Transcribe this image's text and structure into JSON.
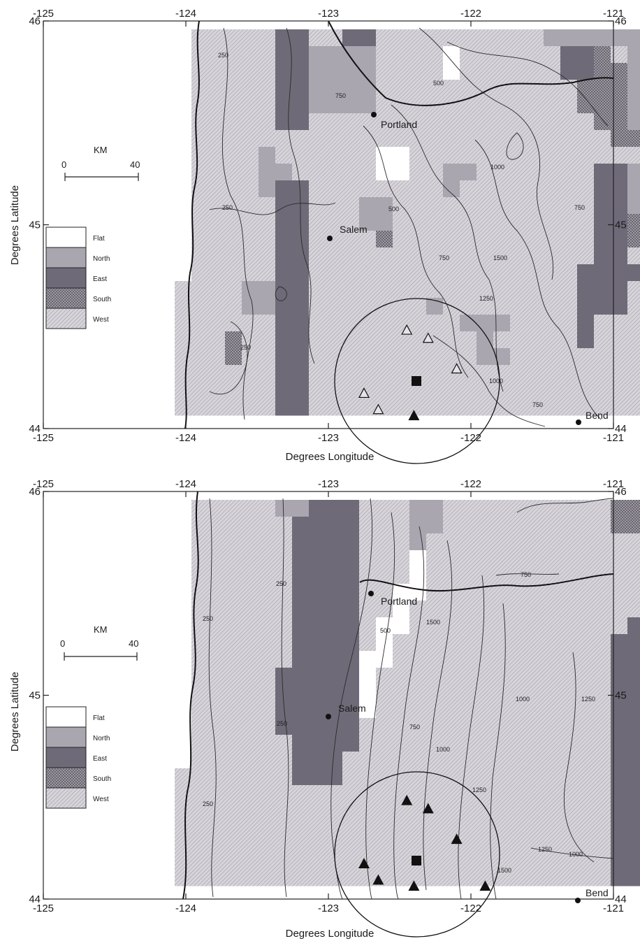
{
  "map_data": {
    "axes": {
      "xlabel": "Degrees Longitude",
      "ylabel": "Degrees Latitude",
      "xlim": [
        -125,
        -121
      ],
      "ylim": [
        44,
        46
      ],
      "x_ticks": [
        "-125",
        "-124",
        "-123",
        "-122",
        "-121"
      ],
      "y_ticks": [
        "44",
        "45",
        "46"
      ]
    },
    "legend": {
      "items": [
        {
          "key": "flat",
          "label": "Flat"
        },
        {
          "key": "north",
          "label": "North"
        },
        {
          "key": "east",
          "label": "East"
        },
        {
          "key": "south",
          "label": "South"
        },
        {
          "key": "west",
          "label": "West"
        }
      ]
    },
    "scale_bar": {
      "unit": "KM",
      "start_label": "0",
      "end_label": "40"
    },
    "cities": [
      {
        "name": "Portland",
        "lon": -122.7,
        "lat": 45.55
      },
      {
        "name": "Salem",
        "lon": -123.0,
        "lat": 44.95
      },
      {
        "name": "Bend",
        "lon": -121.3,
        "lat": 44.05
      }
    ],
    "center_site": {
      "lon": -122.4,
      "lat": 44.25
    },
    "panels": [
      {
        "id": "top",
        "contour_labels": [
          "250",
          "250",
          "500",
          "750",
          "750",
          "1000",
          "1250",
          "1500",
          "750",
          "250",
          "500",
          "1000",
          "750"
        ],
        "stations": [
          {
            "lon": -122.45,
            "lat": 44.48,
            "filled": false
          },
          {
            "lon": -122.3,
            "lat": 44.44,
            "filled": false
          },
          {
            "lon": -122.1,
            "lat": 44.29,
            "filled": false
          },
          {
            "lon": -122.75,
            "lat": 44.17,
            "filled": false
          },
          {
            "lon": -122.65,
            "lat": 44.09,
            "filled": false
          },
          {
            "lon": -122.4,
            "lat": 44.06,
            "filled": true
          }
        ]
      },
      {
        "id": "bottom",
        "contour_labels": [
          "250",
          "250",
          "250",
          "250",
          "500",
          "750",
          "1000",
          "1250",
          "1500",
          "750",
          "1000",
          "1000",
          "1250",
          "1500",
          "1250"
        ],
        "stations": [
          {
            "lon": -122.45,
            "lat": 44.48,
            "filled": true
          },
          {
            "lon": -122.3,
            "lat": 44.44,
            "filled": true
          },
          {
            "lon": -122.1,
            "lat": 44.29,
            "filled": true
          },
          {
            "lon": -122.75,
            "lat": 44.17,
            "filled": true
          },
          {
            "lon": -122.65,
            "lat": 44.09,
            "filled": true
          },
          {
            "lon": -122.4,
            "lat": 44.06,
            "filled": true
          },
          {
            "lon": -121.9,
            "lat": 44.06,
            "filled": true
          }
        ]
      }
    ]
  }
}
